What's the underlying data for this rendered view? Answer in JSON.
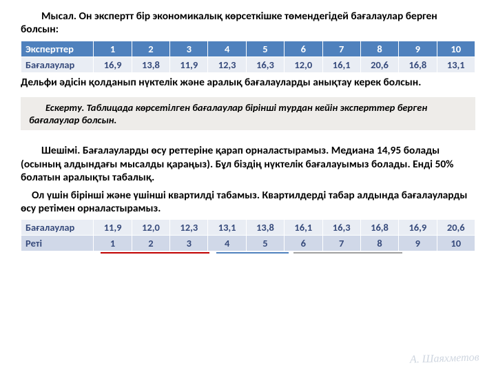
{
  "colors": {
    "table_header_bg": "#4f81bd",
    "table_header_fg": "#ffffff",
    "table_body_bg": "#e9edf4",
    "table_body_bg_alt": "#d0d8e8",
    "table_body_fg": "#374b7c",
    "note_bg": "#eeece9",
    "underline_red": "#c00000",
    "underline_blue": "#4f81bd",
    "underline_gray": "#a0a0a0",
    "text": "#000000",
    "sig_color": "#cfd6e0"
  },
  "fontsizes": {
    "body_pt": 12,
    "table_pt": 11,
    "note_pt": 11
  },
  "para1": "Мысал. Он экспертт бір экономикалық көрсеткішке төмендегідей бағалаулар берген болсын:",
  "table1": {
    "row1_label": "Эксперттер",
    "row1": [
      "1",
      "2",
      "3",
      "4",
      "5",
      "6",
      "7",
      "8",
      "9",
      "10"
    ],
    "row2_label": "Бағалаулар",
    "row2": [
      "16,9",
      "13,8",
      "11,9",
      "12,3",
      "16,3",
      "12,0",
      "16,1",
      "20,6",
      "16,8",
      "13,1"
    ]
  },
  "para2": "Дельфи әдісін қолданып нүктелік және аралық бағалауларды анықтау керек болсын.",
  "note": "Ескерту. Таблицада көрсетілген бағалаулар бірінші турдан кейін эксперттер берген бағалаулар болсын.",
  "para3": "Шешімі. Бағалауларды өсу реттеріне қарап орналастырамыз. Медиана 14,95 болады (осының алдындағы мысалды қараңыз). Бұл біздің нүктелік бағалауымыз болады. Енді 50%  болатын аралықты табалық.",
  "para4": "Ол үшін бірінші және үшінші квартилді табамыз. Квартилдерді табар алдында бағалауларды өсу ретімен орналастырамыз.",
  "table2": {
    "row1_label": "Бағалаулар",
    "row1": [
      "11,9",
      "12,0",
      "12,3",
      "13,1",
      "13,8",
      "16,1",
      "16,3",
      "16,8",
      "16,9",
      "20,6"
    ],
    "row2_label": "Реті",
    "row2": [
      "1",
      "2",
      "3",
      "4",
      "5",
      "6",
      "7",
      "8",
      "9",
      "10"
    ]
  },
  "underlines": {
    "seg1": {
      "left_pct": 17.5,
      "width_pct": 24,
      "color": "#c00000"
    },
    "seg2": {
      "left_pct": 43,
      "width_pct": 16,
      "color": "#4f81bd"
    },
    "seg3": {
      "left_pct": 60,
      "width_pct": 24,
      "color": "#a0a0a0"
    }
  },
  "signature": "А. Шаяхметов"
}
